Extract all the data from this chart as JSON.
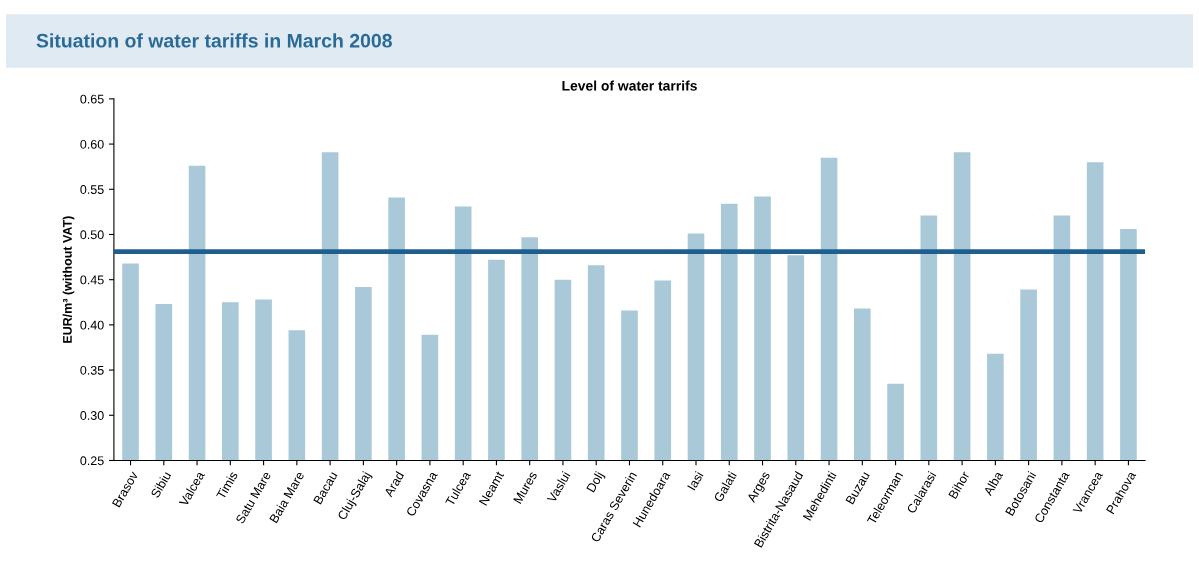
{
  "chart_data": {
    "type": "bar",
    "title": "Situation of water tariffs in March 2008",
    "subtitle": "Level of water tarrifs",
    "ylabel": "EUR/m³ (without VAT)",
    "categories": [
      "Brasov",
      "Sibiu",
      "Valcea",
      "Timis",
      "Satu Mare",
      "Baia Mare",
      "Bacau",
      "Cluj-Salaj",
      "Arad",
      "Covasna",
      "Tulcea",
      "Neamt",
      "Mures",
      "Vaslui",
      "Dolj",
      "Caras Severin",
      "Hunedoara",
      "Iasi",
      "Galati",
      "Arges",
      "Bistrita-Nasaud",
      "Mehedinti",
      "Buzau",
      "Teleorman",
      "Calarasi",
      "Bihor",
      "Alba",
      "Botosani",
      "Constanta",
      "Vrancea",
      "Prahova"
    ],
    "values": [
      0.468,
      0.423,
      0.576,
      0.425,
      0.428,
      0.394,
      0.591,
      0.442,
      0.541,
      0.389,
      0.531,
      0.472,
      0.497,
      0.45,
      0.466,
      0.416,
      0.449,
      0.501,
      0.534,
      0.542,
      0.477,
      0.585,
      0.418,
      0.335,
      0.521,
      0.591,
      0.368,
      0.439,
      0.521,
      0.58,
      0.506
    ],
    "color": "#a9c9d8",
    "ylim": [
      0.25,
      0.65
    ],
    "yticks": [
      0.25,
      {
        "value": 0.3,
        "label": "0.30"
      },
      0.35,
      {
        "value": 0.4,
        "label": "0.40"
      },
      0.45,
      {
        "value": 0.5,
        "label": "0.50"
      },
      0.55,
      {
        "value": 0.6,
        "label": "0.60"
      },
      0.65
    ],
    "ref_lines": [
      {
        "axis": "y",
        "value": 0.481,
        "color": "#1f5f8f",
        "line_style": "solid"
      }
    ],
    "grid": false,
    "legend": false
  }
}
